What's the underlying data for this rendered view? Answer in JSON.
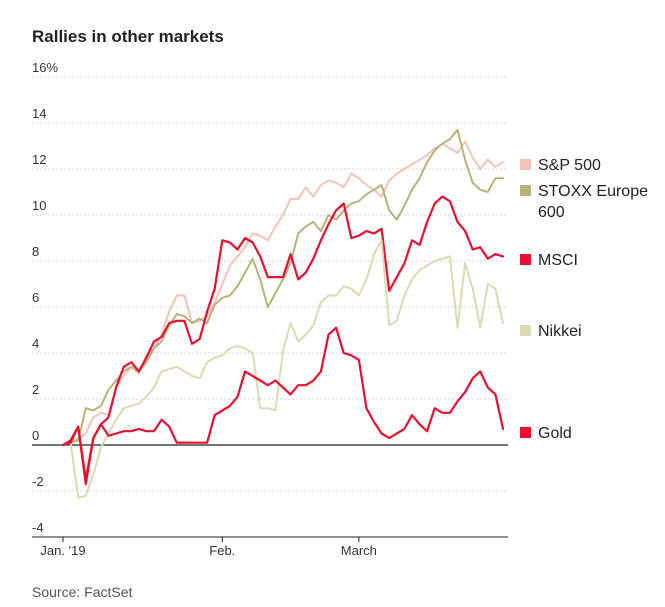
{
  "title": "Rallies in other markets",
  "source": "Source: FactSet",
  "chart_data": {
    "type": "line",
    "title": "Rallies in other markets",
    "xlabel": "",
    "ylabel": "",
    "ylim": [
      -4,
      16
    ],
    "y_ticks": [
      -4,
      -2,
      0,
      2,
      4,
      6,
      8,
      10,
      12,
      14,
      16
    ],
    "y_tick_labels": [
      "-4",
      "-2",
      "0",
      "2",
      "4",
      "6",
      "8",
      "10",
      "12",
      "14",
      "16%"
    ],
    "x_ticks": [
      0,
      21,
      39
    ],
    "x_tick_labels": [
      "Jan. '19",
      "Feb.",
      "March"
    ],
    "xlim": [
      -2,
      59
    ],
    "grid": true,
    "legend": "right",
    "series": [
      {
        "name": "S&P 500",
        "color": "#f5c3b6",
        "values": [
          0,
          0.1,
          0.3,
          0.5,
          1.2,
          1.4,
          1.3,
          2.5,
          3.0,
          3.4,
          3.1,
          3.9,
          4.2,
          4.8,
          5.8,
          6.5,
          6.5,
          5.3,
          5.4,
          5.6,
          6.2,
          7.0,
          7.8,
          8.2,
          8.6,
          9.2,
          9.1,
          8.9,
          9.5,
          10.0,
          10.7,
          10.7,
          11.2,
          10.8,
          11.3,
          11.5,
          11.4,
          11.2,
          11.8,
          11.6,
          11.3,
          11.1,
          10.8,
          11.5,
          11.8,
          12.0,
          12.2,
          12.4,
          12.6,
          12.9,
          13.1,
          12.9,
          12.7,
          13.2,
          12.5,
          12.0,
          12.4,
          12.1,
          12.3
        ]
      },
      {
        "name": "STOXX Europe 600",
        "color": "#b7b37a",
        "values": [
          0,
          0.1,
          0.2,
          1.6,
          1.5,
          1.7,
          2.4,
          2.8,
          3.2,
          3.4,
          3.2,
          3.6,
          4.2,
          4.5,
          5.2,
          5.7,
          5.6,
          5.3,
          5.5,
          5.3,
          6.1,
          6.4,
          6.5,
          6.9,
          7.5,
          8.1,
          7.2,
          6.0,
          6.6,
          7.2,
          7.9,
          9.2,
          9.5,
          9.7,
          9.3,
          10.0,
          9.8,
          10.2,
          10.5,
          10.6,
          10.9,
          11.1,
          11.3,
          10.2,
          9.8,
          10.4,
          11.1,
          11.6,
          12.3,
          12.8,
          13.1,
          13.3,
          13.7,
          12.4,
          11.4,
          11.1,
          11.0,
          11.6,
          11.6
        ]
      },
      {
        "name": "MSCI",
        "color": "#e8102f",
        "values": [
          0,
          0.2,
          0.8,
          -1.5,
          0.3,
          0.9,
          1.2,
          2.5,
          3.4,
          3.6,
          3.2,
          3.8,
          4.5,
          4.7,
          5.3,
          5.4,
          5.4,
          4.4,
          4.6,
          5.8,
          6.8,
          8.9,
          8.8,
          8.5,
          9.0,
          8.8,
          8.2,
          7.3,
          7.3,
          7.3,
          8.3,
          7.2,
          7.5,
          8.1,
          8.9,
          9.6,
          10.2,
          10.5,
          9.0,
          9.1,
          9.3,
          9.2,
          9.4,
          6.7,
          7.3,
          7.9,
          8.9,
          8.7,
          9.7,
          10.5,
          10.8,
          10.6,
          9.7,
          9.3,
          8.5,
          8.6,
          8.1,
          8.3,
          8.2
        ]
      },
      {
        "name": "Nikkei",
        "color": "#dcdab0",
        "values": [
          0,
          0.1,
          -2.3,
          -2.2,
          -1.3,
          -0.1,
          0.5,
          1.1,
          1.6,
          1.7,
          1.8,
          2.1,
          2.5,
          3.2,
          3.3,
          3.4,
          3.2,
          3.0,
          2.9,
          3.6,
          3.8,
          3.9,
          4.2,
          4.3,
          4.2,
          4.0,
          1.6,
          1.6,
          1.5,
          4.1,
          5.3,
          4.5,
          4.8,
          5.2,
          6.2,
          6.5,
          6.5,
          6.9,
          6.8,
          6.5,
          7.2,
          8.3,
          8.9,
          5.2,
          5.4,
          6.5,
          7.2,
          7.6,
          7.8,
          8.0,
          8.1,
          8.2,
          5.1,
          7.9,
          6.8,
          5.1,
          7.0,
          6.8,
          5.3
        ]
      },
      {
        "name": "Gold",
        "color": "#e8102f",
        "values": [
          0,
          0.1,
          0.8,
          -1.7,
          0.3,
          0.9,
          0.4,
          0.5,
          0.6,
          0.6,
          0.7,
          0.6,
          0.6,
          1.1,
          0.8,
          0.1,
          0.1,
          0.1,
          0.1,
          0.1,
          1.3,
          1.5,
          1.7,
          2.1,
          3.2,
          3.0,
          2.8,
          2.6,
          2.8,
          2.5,
          2.2,
          2.6,
          2.6,
          2.8,
          3.2,
          4.8,
          5.1,
          4.0,
          3.9,
          3.7,
          1.6,
          1.0,
          0.5,
          0.3,
          0.5,
          0.7,
          1.3,
          0.9,
          0.6,
          1.6,
          1.4,
          1.4,
          1.9,
          2.3,
          2.9,
          3.2,
          2.5,
          2.2,
          0.7
        ]
      }
    ]
  }
}
